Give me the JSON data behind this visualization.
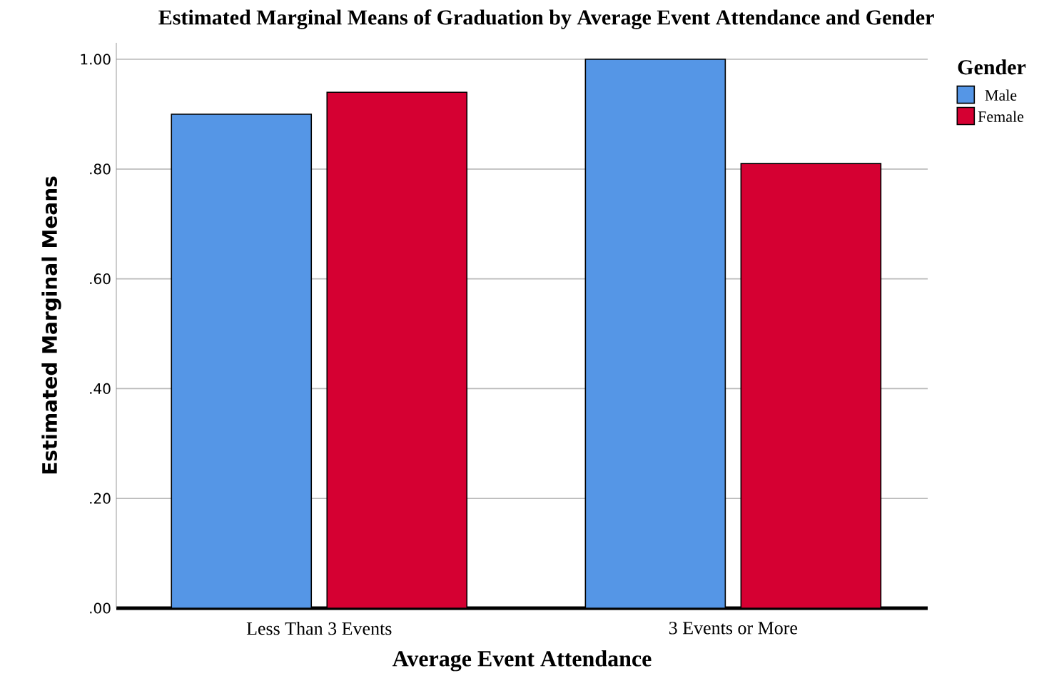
{
  "chart_data": {
    "type": "bar",
    "title": "Estimated Marginal Means of Graduation by Average Event Attendance and Gender",
    "xlabel": "Average Event Attendance",
    "ylabel": "Estimated Marginal Means",
    "legend_title": "Gender",
    "categories": [
      "Less Than 3 Events",
      "3 Events or More"
    ],
    "series": [
      {
        "name": "Male",
        "color": "#5596e6",
        "values": [
          0.9,
          1.0
        ]
      },
      {
        "name": "Female",
        "color": "#d50032",
        "values": [
          0.94,
          0.81
        ]
      }
    ],
    "ylim": [
      0,
      1.03
    ],
    "yticks": [
      {
        "value": 0,
        "label": ".00"
      },
      {
        "value": 0.2,
        "label": ".20"
      },
      {
        "value": 0.4,
        "label": ".40"
      },
      {
        "value": 0.6,
        "label": ".60"
      },
      {
        "value": 0.8,
        "label": ".80"
      },
      {
        "value": 1.0,
        "label": "1.00"
      }
    ],
    "grid": "y",
    "legend": "top right"
  }
}
